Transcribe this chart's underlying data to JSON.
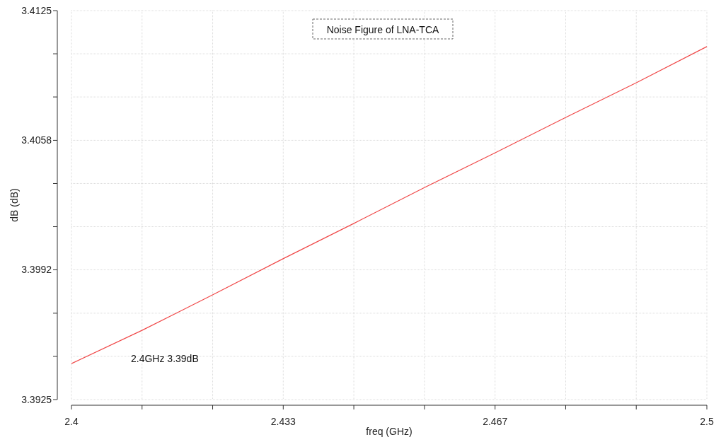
{
  "chart_data": {
    "type": "line",
    "title": "Noise Figure of LNA-TCA",
    "xlabel": "freq (GHz)",
    "ylabel": "dB (dB)",
    "annotations": [
      "2.4GHz 3.39dB"
    ],
    "x": [
      2.4,
      2.4111,
      2.4222,
      2.4333,
      2.4444,
      2.4556,
      2.4667,
      2.4778,
      2.4889,
      2.5
    ],
    "series": [
      {
        "color": "#f04848",
        "values": [
          3.39435,
          3.39606,
          3.39788,
          3.39974,
          3.40155,
          3.40341,
          3.40519,
          3.40701,
          3.40879,
          3.41065
        ]
      }
    ],
    "xlim": [
      2.4,
      2.5
    ],
    "xticks": [
      2.4,
      {
        "value": 2.41111,
        "label": null
      },
      {
        "value": 2.42222,
        "label": null
      },
      {
        "value": 2.43333,
        "label": "2.433"
      },
      {
        "value": 2.44444,
        "label": null
      },
      {
        "value": 2.45556,
        "label": null
      },
      {
        "value": 2.46667,
        "label": "2.467"
      },
      {
        "value": 2.47778,
        "label": null
      },
      {
        "value": 2.48889,
        "label": null
      },
      2.5
    ],
    "ylim": [
      3.3925,
      3.4125
    ],
    "yticks": [
      3.3925,
      {
        "value": 3.39472,
        "label": null
      },
      {
        "value": 3.39694,
        "label": null
      },
      {
        "value": 3.39917,
        "label": "3.3992"
      },
      {
        "value": 3.40139,
        "label": null
      },
      {
        "value": 3.40361,
        "label": null
      },
      {
        "value": 3.40583,
        "label": "3.4058"
      },
      {
        "value": 3.40806,
        "label": null
      },
      {
        "value": 3.41028,
        "label": null
      },
      3.4125
    ],
    "grid": true,
    "marker": "none",
    "line_style": "solid"
  }
}
